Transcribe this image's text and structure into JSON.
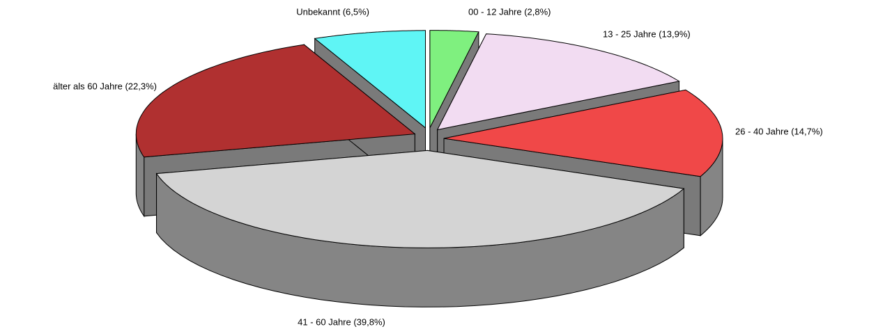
{
  "chart_data": {
    "type": "pie3d",
    "labels": [
      "00 - 12 Jahre (2,8%)",
      "13 - 25 Jahre (13,9%)",
      "26 - 40 Jahre (14,7%)",
      "41 - 60 Jahre (39,8%)",
      "älter als 60 Jahre (22,3%)",
      "Unbekannt (6,5%)"
    ],
    "values": [
      2.8,
      13.9,
      14.7,
      39.8,
      22.3,
      6.5
    ],
    "colors": [
      "#7ff07f",
      "#f2dcf2",
      "#f04848",
      "#d4d4d4",
      "#b03030",
      "#5ff5f5"
    ]
  }
}
